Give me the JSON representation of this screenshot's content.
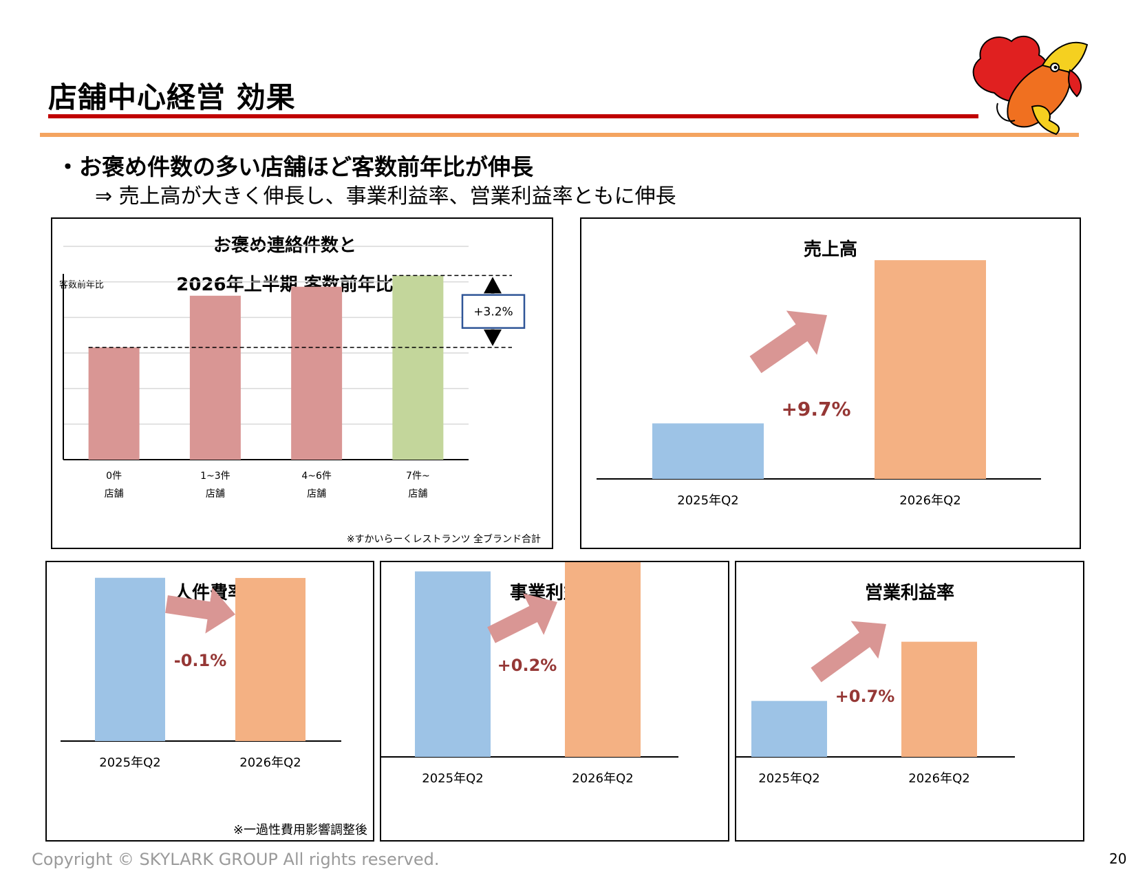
{
  "page": {
    "title": "店舗中心経営 効果",
    "bullet": "・お褒め件数の多い店舗ほど客数前年比が伸長",
    "subbullet": "⇒ 売上高が大きく伸長し、事業利益率、営業利益率ともに伸長",
    "footer": "Copyright © SKYLARK GROUP All rights reserved.",
    "page_number": "20",
    "logo_icon": "mascot-bird-icon"
  },
  "colors": {
    "title_rule": "#c00000",
    "accent_rule": "#f4a460",
    "bar_pink": "#d99694",
    "bar_green": "#c3d69b",
    "bar_2025": "#9dc3e6",
    "bar_2026": "#f4b183",
    "arrow": "#d99694",
    "change_text": "#953735"
  },
  "chart_data": [
    {
      "id": "praise",
      "type": "bar",
      "title": "お褒め連絡件数と",
      "subtitle": "2026年上半期 客数前年比",
      "ylabel": "客数前年比",
      "categories": [
        [
          "0件",
          "店舗"
        ],
        [
          "1~3件",
          "店舗"
        ],
        [
          "4~6件",
          "店舗"
        ],
        [
          "7件~",
          "店舗"
        ]
      ],
      "values": [
        100,
        102.3,
        102.7,
        103.2
      ],
      "ylim": [
        95,
        104.5
      ],
      "annotation": "+3.2%",
      "note": "※すかいらーくレストランツ 全ブランド合計",
      "grid": true
    },
    {
      "id": "sales",
      "type": "bar",
      "title": "売上高",
      "categories": [
        "2025年Q2",
        "2026年Q2"
      ],
      "values": [
        100,
        109.7
      ],
      "ylim": [
        96.7,
        110.4
      ],
      "change": "+9.7%"
    },
    {
      "id": "labor",
      "type": "bar",
      "title": "人件費率",
      "categories": [
        "2025年Q2",
        "2026年Q2"
      ],
      "values": [
        100,
        99.9
      ],
      "ylim": [
        0,
        110
      ],
      "change": "-0.1%",
      "note": "※一過性費用影響調整後"
    },
    {
      "id": "biz_profit",
      "type": "bar",
      "title": "事業利益率",
      "categories": [
        "2025年Q2",
        "2026年Q2"
      ],
      "values": [
        100,
        106.3
      ],
      "ylim": [
        0,
        115
      ],
      "change": "+0.2%"
    },
    {
      "id": "op_profit",
      "type": "bar",
      "title": "営業利益率",
      "categories": [
        "2025年Q2",
        "2026年Q2"
      ],
      "values": [
        100,
        101.1
      ],
      "ylim": [
        98.96,
        101.3
      ],
      "change": "+0.7%"
    }
  ]
}
